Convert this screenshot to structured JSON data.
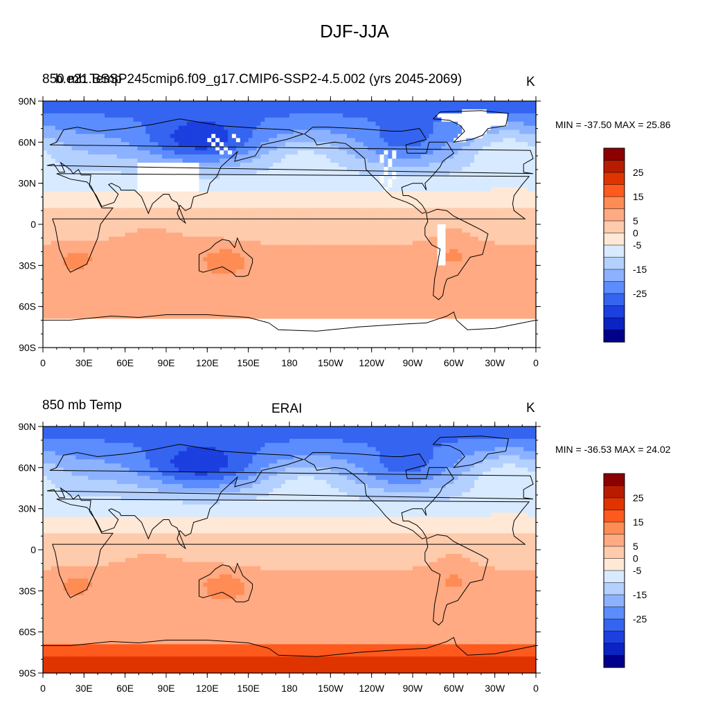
{
  "title": "DJF-JJA",
  "panels": [
    {
      "variable": "850 mb Temp",
      "case": "b.e21.BSSP245cmip6.f09_g17.CMIP6-SSP2-4.5.002 (yrs 2045-2069)",
      "units": "K",
      "stats": "MIN = -37.50 MAX =  25.86",
      "missing_land": true
    },
    {
      "variable": "850 mb Temp",
      "case": "ERAI",
      "units": "K",
      "stats": "MIN = -36.53 MAX =  24.02",
      "missing_land": false
    }
  ],
  "axes": {
    "lon_labels": [
      "0",
      "30E",
      "60E",
      "90E",
      "120E",
      "150E",
      "180",
      "150W",
      "120W",
      "90W",
      "60W",
      "30W",
      "0"
    ],
    "lat_labels": [
      "90N",
      "60N",
      "30N",
      "0",
      "30S",
      "60S",
      "90S"
    ]
  },
  "colorbar": {
    "levels": [
      -35,
      -30,
      -25,
      -20,
      -15,
      -10,
      -5,
      0,
      5,
      10,
      15,
      20,
      25,
      30
    ],
    "labels": [
      "25",
      "15",
      "5",
      "0",
      "-5",
      "-15",
      "-25"
    ],
    "colors": [
      "#8b0000",
      "#b81c00",
      "#e03400",
      "#ff5a1e",
      "#ff8c55",
      "#ffaa82",
      "#ffcbad",
      "#ffe8d6",
      "#d8eaff",
      "#b3d0ff",
      "#8cb2ff",
      "#5c8dff",
      "#3564f0",
      "#1c3fe0",
      "#0a23c2",
      "#00008b"
    ]
  }
}
